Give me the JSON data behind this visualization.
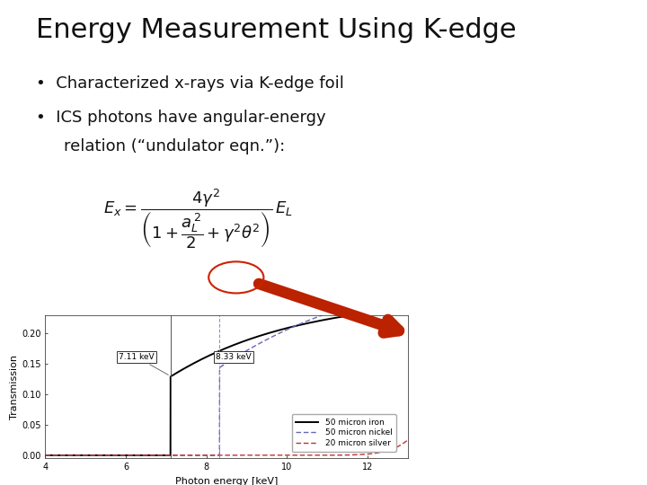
{
  "title": "Energy Measurement Using K-edge",
  "bullet1": "Characterized x-rays via K-edge foil",
  "bullet2a": "ICS photons have angular-energy",
  "bullet2b": "relation (“undulator eqn.”):",
  "background_color": "#ffffff",
  "title_fontsize": 22,
  "bullet_fontsize": 13,
  "formula_fontsize": 13,
  "plot_xlim": [
    4,
    13
  ],
  "plot_ylim": [
    -0.005,
    0.23
  ],
  "plot_xticks": [
    4,
    6,
    8,
    10,
    12
  ],
  "plot_yticks": [
    0.0,
    0.05,
    0.1,
    0.15,
    0.2
  ],
  "xlabel": "Photon energy [keV]",
  "ylabel": "Transmission",
  "iron_kedge": 7.11,
  "nickel_kedge": 8.33,
  "legend_labels": [
    "50 micron iron",
    "50 micron nickel",
    "20 micron silver"
  ],
  "iron_color": "#000000",
  "nickel_color": "#6666bb",
  "silver_color": "#bb3333",
  "arrow_color": "#bb2200",
  "circle_color": "#cc2200",
  "vline_iron_color": "#555555",
  "vline_nickel_color": "#8888bb"
}
